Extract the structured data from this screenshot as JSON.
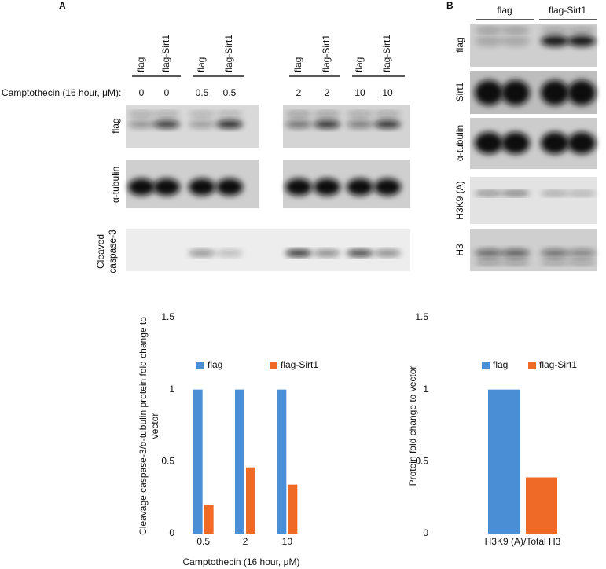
{
  "panel_a": {
    "letter": "A",
    "lane_labels": [
      "flag",
      "flag-Sirt1",
      "flag",
      "flag-Sirt1",
      "flag",
      "flag-Sirt1",
      "flag",
      "flag-Sirt1"
    ],
    "treatment_label": "Camptothecin (16 hour, μM):",
    "doses": [
      "0",
      "0",
      "0.5",
      "0.5",
      "2",
      "2",
      "10",
      "10"
    ],
    "rows": [
      "flag",
      "α-tubulin",
      "Cleaved caspase-3"
    ]
  },
  "panel_b": {
    "letter": "B",
    "lane_groups": [
      "flag",
      "flag-Sirt1"
    ],
    "rows": [
      "flag",
      "Sirt1",
      "α-tubulin",
      "H3K9 (A)",
      "H3"
    ]
  },
  "chart_data": [
    {
      "type": "bar",
      "title": null,
      "y_label": "Cleavage caspase-3/α-tubulin protein fold change to vector",
      "x_label": "Camptothecin (16 hour, μM)",
      "categories": [
        "0.5",
        "2",
        "10"
      ],
      "series": [
        {
          "name": "flag",
          "color": "#4a8fd6",
          "values": [
            1,
            1,
            1
          ]
        },
        {
          "name": "flag-Sirt1",
          "color": "#ee6a26",
          "values": [
            0.2,
            0.46,
            0.34
          ]
        }
      ],
      "ylim": [
        0,
        1.5
      ],
      "yticks": [
        0,
        0.5,
        1,
        1.5
      ],
      "grid": false,
      "legend": "top"
    },
    {
      "type": "bar",
      "title": null,
      "y_label": "Protein fold change to vector",
      "categories": [
        "H3K9 (A)/Total H3"
      ],
      "series": [
        {
          "name": "flag",
          "color": "#4a8fd6",
          "values": [
            1
          ]
        },
        {
          "name": "flag-Sirt1",
          "color": "#ee6a26",
          "values": [
            0.39
          ]
        }
      ],
      "ylim": [
        0,
        1.5
      ],
      "yticks": [
        0,
        0.5,
        1,
        1.5
      ],
      "grid": false,
      "legend": "top"
    }
  ]
}
